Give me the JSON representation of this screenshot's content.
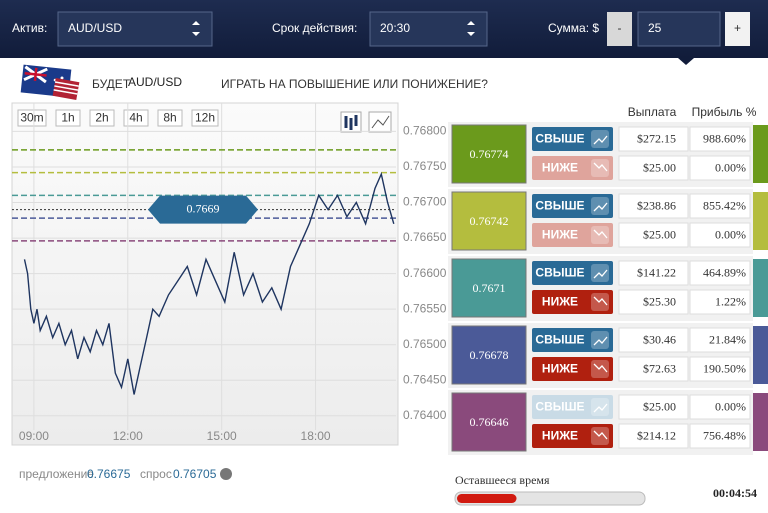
{
  "toolbar": {
    "asset_label": "Актив:",
    "asset": "AUD/USD",
    "expiry_label": "Срок действия:",
    "expiry": "20:30",
    "amount_label": "Сумма: $",
    "minus": "-",
    "amount": "25",
    "plus": "+"
  },
  "question": {
    "prefix": "БУДЕТ",
    "asset": "AUD/USD",
    "suffix": "ИГРАТЬ НА ПОВЫШЕНИЕ ИЛИ ПОНИЖЕНИЕ?"
  },
  "timeframes": [
    "30m",
    "1h",
    "2h",
    "4h",
    "8h",
    "12h"
  ],
  "price_chart": {
    "type": "line",
    "color": "#1f3560",
    "x": [
      8.7,
      8.8,
      8.9,
      9.0,
      9.1,
      9.2,
      9.4,
      9.6,
      9.8,
      10.0,
      10.2,
      10.4,
      10.6,
      10.8,
      11.0,
      11.2,
      11.4,
      11.6,
      11.8,
      12.0,
      12.2,
      12.4,
      12.6,
      12.8,
      13.0,
      13.3,
      13.6,
      13.9,
      14.2,
      14.5,
      14.8,
      15.1,
      15.4,
      15.7,
      16.0,
      16.3,
      16.6,
      16.9,
      17.2,
      17.5,
      17.8,
      18.1,
      18.4,
      18.7,
      19.0,
      19.3,
      19.6,
      19.9,
      20.1,
      20.3,
      20.5
    ],
    "values": [
      0.7662,
      0.766,
      0.7655,
      0.7653,
      0.7655,
      0.7652,
      0.7654,
      0.7651,
      0.7653,
      0.765,
      0.7652,
      0.7648,
      0.7651,
      0.7649,
      0.7652,
      0.765,
      0.7653,
      0.7646,
      0.7644,
      0.7648,
      0.7643,
      0.7647,
      0.7651,
      0.7655,
      0.7654,
      0.7657,
      0.7659,
      0.7661,
      0.7657,
      0.7662,
      0.7659,
      0.7656,
      0.7663,
      0.7657,
      0.766,
      0.7656,
      0.7658,
      0.7655,
      0.7661,
      0.7664,
      0.7667,
      0.7671,
      0.7669,
      0.7671,
      0.7668,
      0.767,
      0.7667,
      0.7672,
      0.7674,
      0.767,
      0.7667
    ],
    "xlim": [
      8.3,
      20.57
    ],
    "ylim": [
      0.7638,
      0.7684
    ],
    "xticks": [
      {
        "value": 9,
        "label": "09:00"
      },
      {
        "value": 12,
        "label": "12:00"
      },
      {
        "value": 15,
        "label": "15:00"
      },
      {
        "value": 18,
        "label": "18:00"
      }
    ],
    "yticks": [
      {
        "value": 0.768,
        "label": "0.76800"
      },
      {
        "value": 0.7675,
        "label": "0.76750"
      },
      {
        "value": 0.767,
        "label": "0.76700"
      },
      {
        "value": 0.7665,
        "label": "0.76650"
      },
      {
        "value": 0.766,
        "label": "0.76600"
      },
      {
        "value": 0.7655,
        "label": "0.76550"
      },
      {
        "value": 0.765,
        "label": "0.76500"
      },
      {
        "value": 0.7645,
        "label": "0.76450"
      },
      {
        "value": 0.764,
        "label": "0.76400"
      }
    ],
    "current_price": 0.7669,
    "grid": true
  },
  "quote": {
    "bid_label": "предложение",
    "bid": "0.76675",
    "ask_label": "спрос",
    "ask": "0.76705"
  },
  "table": {
    "headers": [
      "Выплата",
      "Прибыль %"
    ],
    "options": [
      {
        "strike": 0.76774,
        "color": "#6b9a1c",
        "up": {
          "label": "СВЫШЕ",
          "payout": "$272.15",
          "profit": "988.60%",
          "active": true
        },
        "down": {
          "label": "НИЖЕ",
          "payout": "$25.00",
          "profit": "0.00%",
          "active": false
        }
      },
      {
        "strike": 0.76742,
        "color": "#b4bd3e",
        "up": {
          "label": "СВЫШЕ",
          "payout": "$238.86",
          "profit": "855.42%",
          "active": true
        },
        "down": {
          "label": "НИЖЕ",
          "payout": "$25.00",
          "profit": "0.00%",
          "active": false
        }
      },
      {
        "strike": 0.7671,
        "color": "#4a9a96",
        "up": {
          "label": "СВЫШЕ",
          "payout": "$141.22",
          "profit": "464.89%",
          "active": true
        },
        "down": {
          "label": "НИЖЕ",
          "payout": "$25.30",
          "profit": "1.22%",
          "active": true
        }
      },
      {
        "strike": 0.76678,
        "color": "#4b5a98",
        "up": {
          "label": "СВЫШЕ",
          "payout": "$30.46",
          "profit": "21.84%",
          "active": true
        },
        "down": {
          "label": "НИЖЕ",
          "payout": "$72.63",
          "profit": "190.50%",
          "active": true
        }
      },
      {
        "strike": 0.76646,
        "color": "#8a4a7c",
        "up": {
          "label": "СВЫШЕ",
          "payout": "$25.00",
          "profit": "0.00%",
          "active": false
        },
        "down": {
          "label": "НИЖЕ",
          "payout": "$214.12",
          "profit": "756.48%",
          "active": true
        }
      }
    ]
  },
  "timer": {
    "label": "Оставшееся время",
    "value": "00:04:54",
    "progress": 0.32
  }
}
